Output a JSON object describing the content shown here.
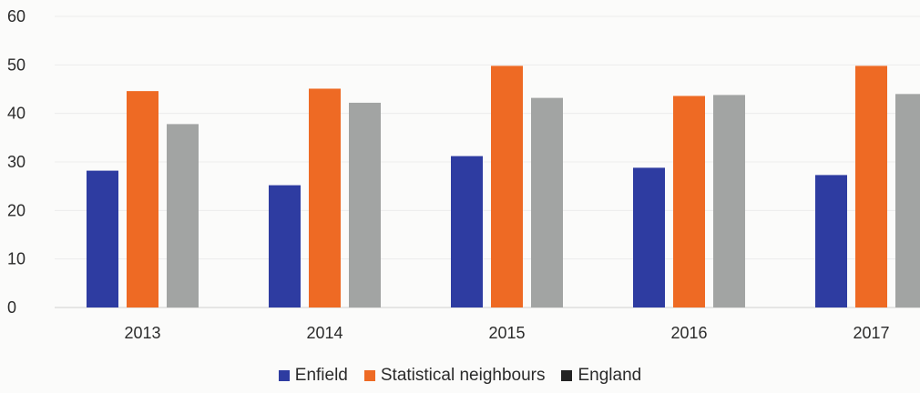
{
  "chart_data": {
    "type": "bar",
    "categories": [
      "2013",
      "2014",
      "2015",
      "2016",
      "2017"
    ],
    "series": [
      {
        "name": "Enfield",
        "values": [
          28.2,
          25.2,
          31.2,
          28.8,
          27.3
        ],
        "color": "#2e3ca1"
      },
      {
        "name": "Statistical neighbours",
        "values": [
          44.6,
          45.1,
          49.8,
          43.6,
          49.8
        ],
        "color": "#ee6a24"
      },
      {
        "name": "England",
        "values": [
          37.8,
          42.2,
          43.2,
          43.8,
          44.0
        ],
        "color": "#a2a4a3"
      }
    ],
    "ylim": [
      0,
      60
    ],
    "yticks": [
      "0",
      "10",
      "20",
      "30",
      "40",
      "50",
      "60"
    ],
    "grid": true,
    "legend_position": "bottom"
  },
  "legend": [
    {
      "label": "Enfield",
      "color": "#2e3ca1"
    },
    {
      "label": "Statistical neighbours",
      "color": "#ee6a24"
    },
    {
      "label": "England",
      "color": "#232323"
    }
  ]
}
